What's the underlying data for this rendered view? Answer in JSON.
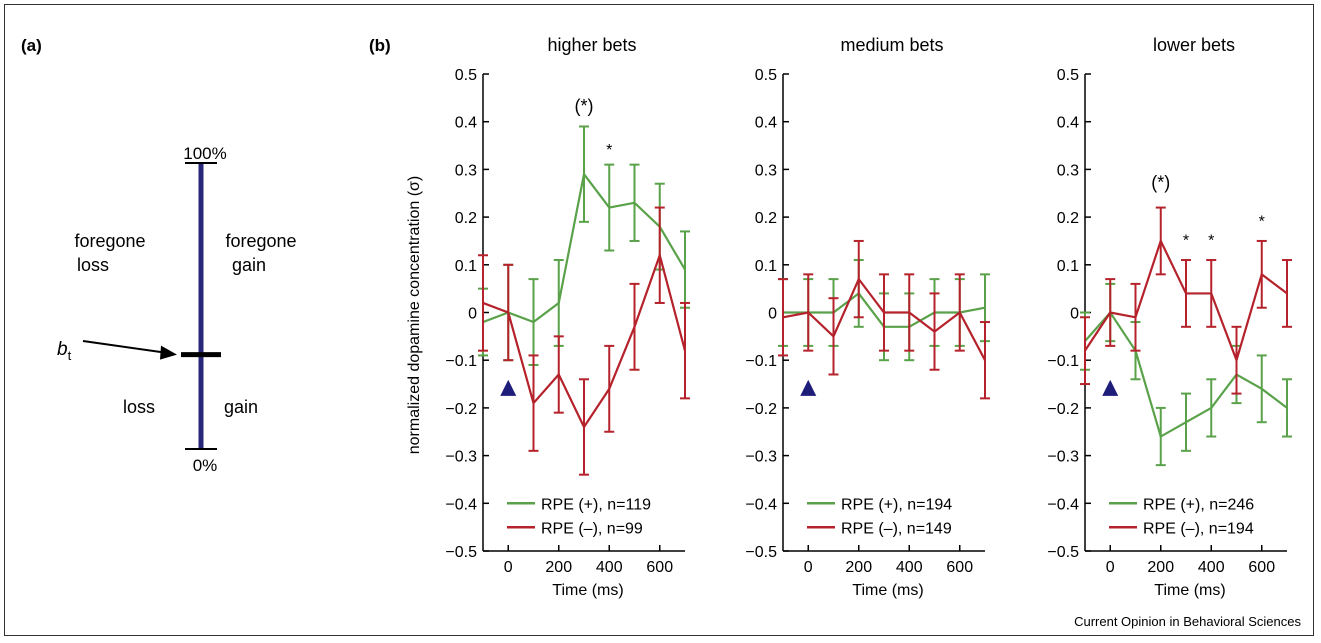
{
  "panel_labels": {
    "a": "(a)",
    "b": "(b)"
  },
  "colors": {
    "positive": "#5aa24a",
    "negative": "#b5222b",
    "scale": "#28277a",
    "marker": "#1f1d7a"
  },
  "scale": {
    "top_label": "100%",
    "bottom_label": "0%",
    "left_upper_line1": "foregone",
    "left_upper_line2": "loss",
    "right_upper_line1": "foregone",
    "right_upper_line2": "gain",
    "left_lower": "loss",
    "right_lower": "gain",
    "pointer_label": "b",
    "pointer_subscript": "t",
    "pointer_fraction": 0.33
  },
  "ylabel": "normalized dopamine concentration (σ)",
  "credit": "Current Opinion in Behavioral Sciences",
  "chart_data": [
    {
      "type": "line",
      "title": "higher bets",
      "xlabel": "Time (ms)",
      "ylabel": "normalized dopamine concentration (σ)",
      "xlim": [
        -100,
        700
      ],
      "ylim": [
        -0.5,
        0.5
      ],
      "xticks": [
        0,
        200,
        400,
        600
      ],
      "yticks": [
        -0.5,
        -0.4,
        -0.3,
        -0.2,
        -0.1,
        0,
        0.1,
        0.2,
        0.3,
        0.4,
        0.5
      ],
      "ytick_labels": [
        "−0.5",
        "−0.4",
        "−0.3",
        "−0.2",
        "−0.1",
        "0",
        "0.1",
        "0.2",
        "0.3",
        "0.4",
        "0.5"
      ],
      "x": [
        -100,
        0,
        100,
        200,
        300,
        400,
        500,
        600,
        700
      ],
      "series": [
        {
          "name": "RPE (+), n=119",
          "color": "#5aa24a",
          "values": [
            -0.02,
            0.0,
            -0.02,
            0.02,
            0.29,
            0.22,
            0.23,
            0.18,
            0.09
          ],
          "err": [
            0.07,
            0.1,
            0.09,
            0.09,
            0.1,
            0.09,
            0.08,
            0.09,
            0.08
          ]
        },
        {
          "name": "RPE (–), n=99",
          "color": "#b5222b",
          "values": [
            0.02,
            0.0,
            -0.19,
            -0.13,
            -0.24,
            -0.16,
            -0.03,
            0.12,
            -0.08
          ],
          "err": [
            0.1,
            0.1,
            0.1,
            0.08,
            0.1,
            0.09,
            0.09,
            0.1,
            0.1
          ]
        }
      ],
      "annotations": [
        {
          "text": "(*)",
          "x": 300,
          "y": 0.42
        },
        {
          "text": "*",
          "x": 400,
          "y": 0.33
        }
      ],
      "marker_x": 0,
      "legend_position": "bottom"
    },
    {
      "type": "line",
      "title": "medium bets",
      "xlabel": "Time (ms)",
      "xlim": [
        -100,
        700
      ],
      "ylim": [
        -0.5,
        0.5
      ],
      "xticks": [
        0,
        200,
        400,
        600
      ],
      "yticks": [
        -0.5,
        -0.4,
        -0.3,
        -0.2,
        -0.1,
        0,
        0.1,
        0.2,
        0.3,
        0.4,
        0.5
      ],
      "ytick_labels": [
        "−0.5",
        "−0.4",
        "−0.3",
        "−0.2",
        "−0.1",
        "0",
        "0.1",
        "0.2",
        "0.3",
        "0.4",
        "0.5"
      ],
      "x": [
        -100,
        0,
        100,
        200,
        300,
        400,
        500,
        600,
        700
      ],
      "series": [
        {
          "name": "RPE (+), n=194",
          "color": "#5aa24a",
          "values": [
            0.0,
            0.0,
            0.0,
            0.04,
            -0.03,
            -0.03,
            0.0,
            0.0,
            0.01
          ],
          "err": [
            0.07,
            0.07,
            0.07,
            0.07,
            0.07,
            0.07,
            0.07,
            0.07,
            0.07
          ]
        },
        {
          "name": "RPE (–), n=149",
          "color": "#b5222b",
          "values": [
            -0.01,
            0.0,
            -0.05,
            0.07,
            0.0,
            0.0,
            -0.04,
            0.0,
            -0.1
          ],
          "err": [
            0.08,
            0.08,
            0.08,
            0.08,
            0.08,
            0.08,
            0.08,
            0.08,
            0.08
          ]
        }
      ],
      "annotations": [],
      "marker_x": 0,
      "legend_position": "bottom"
    },
    {
      "type": "line",
      "title": "lower bets",
      "xlabel": "Time (ms)",
      "xlim": [
        -100,
        700
      ],
      "ylim": [
        -0.5,
        0.5
      ],
      "xticks": [
        0,
        200,
        400,
        600
      ],
      "yticks": [
        -0.5,
        -0.4,
        -0.3,
        -0.2,
        -0.1,
        0,
        0.1,
        0.2,
        0.3,
        0.4,
        0.5
      ],
      "ytick_labels": [
        "−0.5",
        "−0.4",
        "−0.3",
        "−0.2",
        "−0.1",
        "0",
        "0.1",
        "0.2",
        "0.3",
        "0.4",
        "0.5"
      ],
      "x": [
        -100,
        0,
        100,
        200,
        300,
        400,
        500,
        600,
        700
      ],
      "series": [
        {
          "name": "RPE (+), n=246",
          "color": "#5aa24a",
          "values": [
            -0.06,
            0.0,
            -0.08,
            -0.26,
            -0.23,
            -0.2,
            -0.13,
            -0.16,
            -0.2
          ],
          "err": [
            0.06,
            0.06,
            0.06,
            0.06,
            0.06,
            0.06,
            0.06,
            0.07,
            0.06
          ]
        },
        {
          "name": "RPE (–), n=194",
          "color": "#b5222b",
          "values": [
            -0.08,
            0.0,
            -0.01,
            0.15,
            0.04,
            0.04,
            -0.1,
            0.08,
            0.04
          ],
          "err": [
            0.07,
            0.07,
            0.07,
            0.07,
            0.07,
            0.07,
            0.07,
            0.07,
            0.07
          ]
        }
      ],
      "annotations": [
        {
          "text": "(*)",
          "x": 200,
          "y": 0.26
        },
        {
          "text": "*",
          "x": 300,
          "y": 0.14
        },
        {
          "text": "*",
          "x": 400,
          "y": 0.14
        },
        {
          "text": "*",
          "x": 600,
          "y": 0.18
        }
      ],
      "marker_x": 0,
      "legend_position": "bottom"
    }
  ]
}
